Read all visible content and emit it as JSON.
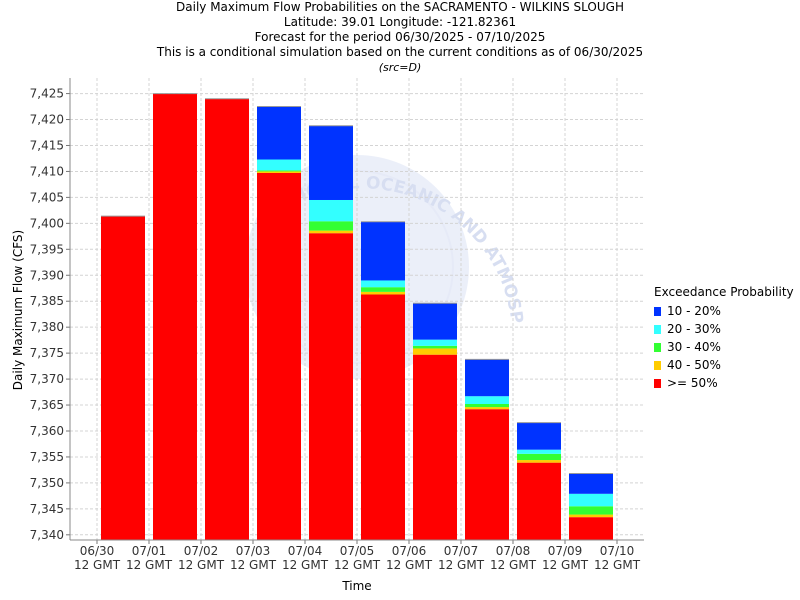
{
  "titles": {
    "line1": "Daily Maximum Flow Probabilities on the SACRAMENTO - WILKINS SLOUGH",
    "line2": "Latitude: 39.01 Longitude: -121.82361",
    "line3": "Forecast for the period 06/30/2025 - 07/10/2025",
    "line4": "This is a conditional simulation based on the current conditions as of 06/30/2025",
    "line5": "(src=D)"
  },
  "legend": {
    "title": "Exceedance Probability",
    "items": [
      {
        "label": "10 - 20%",
        "color": "#0033ff"
      },
      {
        "label": "20 - 30%",
        "color": "#33ffff"
      },
      {
        "label": "30 - 40%",
        "color": "#33ff33"
      },
      {
        "label": "40 - 50%",
        "color": "#ffcc00"
      },
      {
        "label": ">= 50%",
        "color": "#ff0000"
      }
    ]
  },
  "watermark": {
    "text": "NATIONAL OCEANIC AND ATMOSPHERIC ADMINISTRATION",
    "logo": "noaa"
  },
  "chart_data": {
    "type": "bar",
    "stacked": true,
    "xlabel": "Time",
    "ylabel": "Daily Maximum Flow (CFS)",
    "ylim": [
      7339,
      7428
    ],
    "yticks": [
      7340,
      7345,
      7350,
      7355,
      7360,
      7365,
      7370,
      7375,
      7380,
      7385,
      7390,
      7395,
      7400,
      7405,
      7410,
      7415,
      7420,
      7425
    ],
    "ytick_labels": [
      "7,340",
      "7,345",
      "7,350",
      "7,355",
      "7,360",
      "7,365",
      "7,370",
      "7,375",
      "7,380",
      "7,385",
      "7,390",
      "7,395",
      "7,400",
      "7,405",
      "7,410",
      "7,415",
      "7,420",
      "7,425"
    ],
    "xtick_labels": [
      [
        "06/30",
        "12 GMT"
      ],
      [
        "07/01",
        "12 GMT"
      ],
      [
        "07/02",
        "12 GMT"
      ],
      [
        "07/03",
        "12 GMT"
      ],
      [
        "07/04",
        "12 GMT"
      ],
      [
        "07/05",
        "12 GMT"
      ],
      [
        "07/06",
        "12 GMT"
      ],
      [
        "07/07",
        "12 GMT"
      ],
      [
        "07/08",
        "12 GMT"
      ],
      [
        "07/09",
        "12 GMT"
      ],
      [
        "07/10",
        "12 GMT"
      ]
    ],
    "grid": true,
    "legend_position": "right",
    "days": [
      {
        "label": "06/30-07/01",
        "p50": 7401.4,
        "p40": null,
        "p30": null,
        "p20": null,
        "p10": null
      },
      {
        "label": "07/01-07/02",
        "p50": 7425.0,
        "p40": null,
        "p30": null,
        "p20": null,
        "p10": null
      },
      {
        "label": "07/02-07/03",
        "p50": 7424.0,
        "p40": null,
        "p30": null,
        "p20": null,
        "p10": null
      },
      {
        "label": "07/03-07/04",
        "p50": 7409.7,
        "p40": 7410.0,
        "p30": 7410.2,
        "p20": 7412.3,
        "p10": 7422.5
      },
      {
        "label": "07/04-07/05",
        "p50": 7398.1,
        "p40": 7398.6,
        "p30": 7400.4,
        "p20": 7404.5,
        "p10": 7418.8
      },
      {
        "label": "07/05-07/06",
        "p50": 7386.3,
        "p40": 7386.8,
        "p30": 7387.7,
        "p20": 7389.0,
        "p10": 7400.3
      },
      {
        "label": "07/06-07/07",
        "p50": 7374.7,
        "p40": 7375.9,
        "p30": 7376.4,
        "p20": 7377.6,
        "p10": 7384.6
      },
      {
        "label": "07/07-07/08",
        "p50": 7364.2,
        "p40": 7364.6,
        "p30": 7365.2,
        "p20": 7366.7,
        "p10": 7373.8
      },
      {
        "label": "07/08-07/09",
        "p50": 7353.9,
        "p40": 7354.4,
        "p30": 7355.6,
        "p20": 7356.4,
        "p10": 7361.6
      },
      {
        "label": "07/09-07/10",
        "p50": 7343.4,
        "p40": 7343.9,
        "p30": 7345.5,
        "p20": 7347.9,
        "p10": 7351.8
      }
    ]
  }
}
